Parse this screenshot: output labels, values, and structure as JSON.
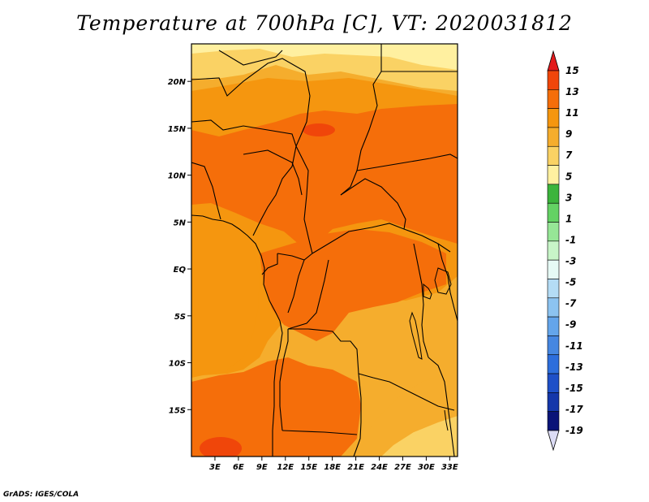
{
  "title": "Temperature at 700hPa [C], VT: 2020031812",
  "credit": "GrADS: IGES/COLA",
  "map": {
    "lon_range": [
      0,
      34
    ],
    "lat_range": [
      -20,
      24
    ],
    "lat_ticks": [
      {
        "value": 20,
        "label": "20N"
      },
      {
        "value": 15,
        "label": "15N"
      },
      {
        "value": 10,
        "label": "10N"
      },
      {
        "value": 5,
        "label": "5N"
      },
      {
        "value": 0,
        "label": "EQ"
      },
      {
        "value": -5,
        "label": "5S"
      },
      {
        "value": -10,
        "label": "10S"
      },
      {
        "value": -15,
        "label": "15S"
      }
    ],
    "lon_ticks": [
      {
        "value": 3,
        "label": "3E"
      },
      {
        "value": 6,
        "label": "6E"
      },
      {
        "value": 9,
        "label": "9E"
      },
      {
        "value": 12,
        "label": "12E"
      },
      {
        "value": 15,
        "label": "15E"
      },
      {
        "value": 18,
        "label": "18E"
      },
      {
        "value": 21,
        "label": "21E"
      },
      {
        "value": 24,
        "label": "24E"
      },
      {
        "value": 27,
        "label": "27E"
      },
      {
        "value": 30,
        "label": "30E"
      },
      {
        "value": 33,
        "label": "33E"
      }
    ]
  },
  "colorbar": {
    "top_color": "#e31a1c",
    "bottom_color": "#dcdcf5",
    "bins": [
      {
        "color": "#f0460a"
      },
      {
        "color": "#f56e0a"
      },
      {
        "color": "#f5960f"
      },
      {
        "color": "#f5ad2d"
      },
      {
        "color": "#fad264"
      },
      {
        "color": "#fff0a0"
      },
      {
        "color": "#3cb43c"
      },
      {
        "color": "#64d264"
      },
      {
        "color": "#96e696"
      },
      {
        "color": "#c8f5c8"
      },
      {
        "color": "#e6faf5"
      },
      {
        "color": "#b4dcf5"
      },
      {
        "color": "#8cc3f0"
      },
      {
        "color": "#64a5eb"
      },
      {
        "color": "#4687e1"
      },
      {
        "color": "#2d6edc"
      },
      {
        "color": "#1e50c8"
      },
      {
        "color": "#1437aa"
      },
      {
        "color": "#0a1478"
      }
    ],
    "labels": [
      "15",
      "13",
      "11",
      "9",
      "7",
      "5",
      "3",
      "1",
      "-1",
      "-3",
      "-5",
      "-7",
      "-9",
      "-11",
      "-13",
      "-15",
      "-17",
      "-19"
    ]
  }
}
